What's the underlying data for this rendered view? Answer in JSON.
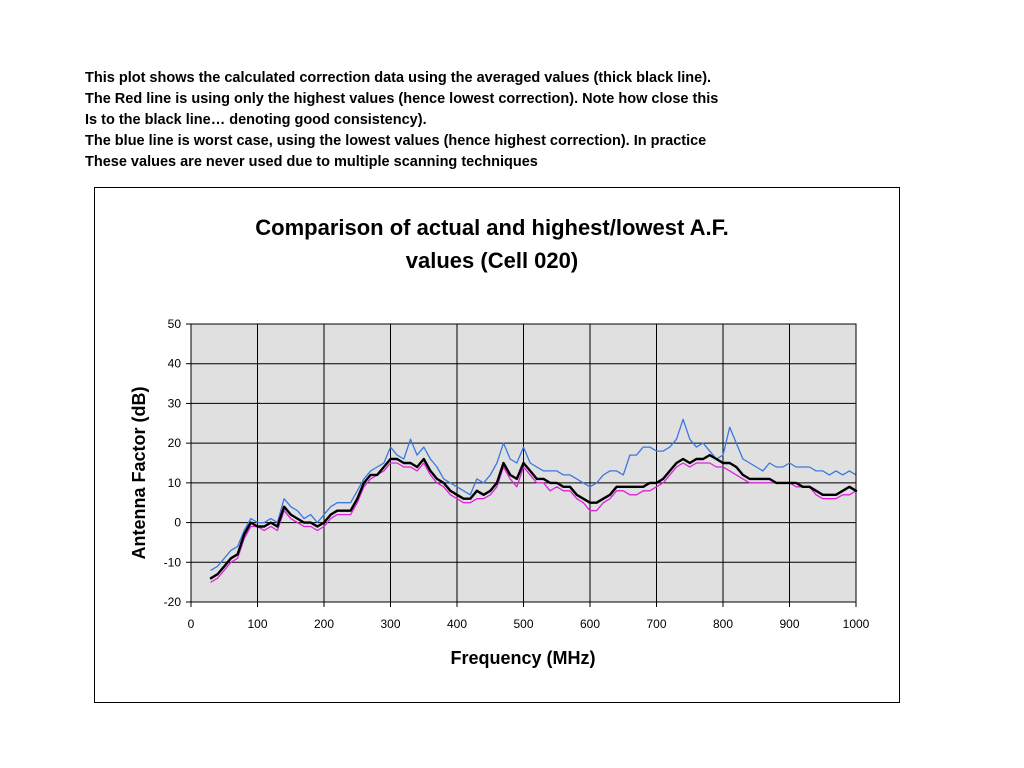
{
  "caption": {
    "lines": [
      "This plot shows the calculated correction data using the averaged values (thick black line).",
      "The Red line is using only the highest values (hence lowest correction). Note how close this",
      "Is to the black line… denoting good consistency).",
      "The blue line is worst case, using the lowest values (hence highest correction). In practice",
      "These values are never used due to multiple scanning techniques"
    ]
  },
  "chart_data": {
    "type": "line",
    "title_lines": [
      "Comparison of actual and highest/lowest A.F.",
      "values (Cell 020)"
    ],
    "xlabel": "Frequency (MHz)",
    "ylabel": "Antenna Factor (dB)",
    "xlim": [
      0,
      1000
    ],
    "ylim": [
      -20,
      50
    ],
    "xticks": [
      0,
      100,
      200,
      300,
      400,
      500,
      600,
      700,
      800,
      900,
      1000
    ],
    "yticks": [
      -20,
      -10,
      0,
      10,
      20,
      30,
      40,
      50
    ],
    "grid": true,
    "legend": "none",
    "colors": {
      "plot_bg": "#e0e0e0",
      "grid": "#000000"
    },
    "series": [
      {
        "color": "#3a78e0",
        "width": 1.3,
        "points": [
          [
            30,
            -12
          ],
          [
            40,
            -11
          ],
          [
            50,
            -9
          ],
          [
            60,
            -7
          ],
          [
            70,
            -6
          ],
          [
            80,
            -2
          ],
          [
            90,
            1
          ],
          [
            100,
            0
          ],
          [
            110,
            0
          ],
          [
            120,
            1
          ],
          [
            130,
            0
          ],
          [
            140,
            6
          ],
          [
            150,
            4
          ],
          [
            160,
            3
          ],
          [
            170,
            1
          ],
          [
            180,
            2
          ],
          [
            190,
            0
          ],
          [
            200,
            2
          ],
          [
            210,
            4
          ],
          [
            220,
            5
          ],
          [
            230,
            5
          ],
          [
            240,
            5
          ],
          [
            250,
            8
          ],
          [
            260,
            11
          ],
          [
            270,
            13
          ],
          [
            280,
            14
          ],
          [
            290,
            15
          ],
          [
            300,
            19
          ],
          [
            310,
            17
          ],
          [
            320,
            16
          ],
          [
            330,
            21
          ],
          [
            340,
            17
          ],
          [
            350,
            19
          ],
          [
            360,
            16
          ],
          [
            370,
            14
          ],
          [
            380,
            11
          ],
          [
            390,
            10
          ],
          [
            400,
            9
          ],
          [
            410,
            8
          ],
          [
            420,
            7
          ],
          [
            430,
            11
          ],
          [
            440,
            10
          ],
          [
            450,
            12
          ],
          [
            460,
            15
          ],
          [
            470,
            20
          ],
          [
            480,
            16
          ],
          [
            490,
            15
          ],
          [
            500,
            19
          ],
          [
            510,
            15
          ],
          [
            520,
            14
          ],
          [
            530,
            13
          ],
          [
            540,
            13
          ],
          [
            550,
            13
          ],
          [
            560,
            12
          ],
          [
            570,
            12
          ],
          [
            580,
            11
          ],
          [
            590,
            10
          ],
          [
            600,
            9
          ],
          [
            610,
            10
          ],
          [
            620,
            12
          ],
          [
            630,
            13
          ],
          [
            640,
            13
          ],
          [
            650,
            12
          ],
          [
            660,
            17
          ],
          [
            670,
            17
          ],
          [
            680,
            19
          ],
          [
            690,
            19
          ],
          [
            700,
            18
          ],
          [
            710,
            18
          ],
          [
            720,
            19
          ],
          [
            730,
            21
          ],
          [
            740,
            26
          ],
          [
            750,
            21
          ],
          [
            760,
            19
          ],
          [
            770,
            20
          ],
          [
            780,
            18
          ],
          [
            790,
            16
          ],
          [
            800,
            17
          ],
          [
            810,
            24
          ],
          [
            820,
            20
          ],
          [
            830,
            16
          ],
          [
            840,
            15
          ],
          [
            850,
            14
          ],
          [
            860,
            13
          ],
          [
            870,
            15
          ],
          [
            880,
            14
          ],
          [
            890,
            14
          ],
          [
            900,
            15
          ],
          [
            910,
            14
          ],
          [
            920,
            14
          ],
          [
            930,
            14
          ],
          [
            940,
            13
          ],
          [
            950,
            13
          ],
          [
            960,
            12
          ],
          [
            970,
            13
          ],
          [
            980,
            12
          ],
          [
            990,
            13
          ],
          [
            1000,
            12
          ]
        ]
      },
      {
        "color": "#e020e0",
        "width": 1.3,
        "points": [
          [
            30,
            -15
          ],
          [
            40,
            -14
          ],
          [
            50,
            -12
          ],
          [
            60,
            -10
          ],
          [
            70,
            -9
          ],
          [
            80,
            -4
          ],
          [
            90,
            -1
          ],
          [
            100,
            -1
          ],
          [
            110,
            -2
          ],
          [
            120,
            -1
          ],
          [
            130,
            -2
          ],
          [
            140,
            3
          ],
          [
            150,
            1
          ],
          [
            160,
            0
          ],
          [
            170,
            -1
          ],
          [
            180,
            -1
          ],
          [
            190,
            -2
          ],
          [
            200,
            -1
          ],
          [
            210,
            1
          ],
          [
            220,
            2
          ],
          [
            230,
            2
          ],
          [
            240,
            2
          ],
          [
            250,
            5
          ],
          [
            260,
            9
          ],
          [
            270,
            11
          ],
          [
            280,
            12
          ],
          [
            290,
            13
          ],
          [
            300,
            15
          ],
          [
            310,
            15
          ],
          [
            320,
            14
          ],
          [
            330,
            14
          ],
          [
            340,
            13
          ],
          [
            350,
            15
          ],
          [
            360,
            12
          ],
          [
            370,
            10
          ],
          [
            380,
            9
          ],
          [
            390,
            7
          ],
          [
            400,
            6
          ],
          [
            410,
            5
          ],
          [
            420,
            5
          ],
          [
            430,
            6
          ],
          [
            440,
            6
          ],
          [
            450,
            7
          ],
          [
            460,
            9
          ],
          [
            470,
            14
          ],
          [
            480,
            11
          ],
          [
            490,
            9
          ],
          [
            500,
            14
          ],
          [
            510,
            12
          ],
          [
            520,
            10
          ],
          [
            530,
            10
          ],
          [
            540,
            8
          ],
          [
            550,
            9
          ],
          [
            560,
            8
          ],
          [
            570,
            8
          ],
          [
            580,
            6
          ],
          [
            590,
            5
          ],
          [
            600,
            3
          ],
          [
            610,
            3
          ],
          [
            620,
            5
          ],
          [
            630,
            6
          ],
          [
            640,
            8
          ],
          [
            650,
            8
          ],
          [
            660,
            7
          ],
          [
            670,
            7
          ],
          [
            680,
            8
          ],
          [
            690,
            8
          ],
          [
            700,
            9
          ],
          [
            710,
            10
          ],
          [
            720,
            12
          ],
          [
            730,
            14
          ],
          [
            740,
            15
          ],
          [
            750,
            14
          ],
          [
            760,
            15
          ],
          [
            770,
            15
          ],
          [
            780,
            15
          ],
          [
            790,
            14
          ],
          [
            800,
            14
          ],
          [
            810,
            13
          ],
          [
            820,
            12
          ],
          [
            830,
            11
          ],
          [
            840,
            10
          ],
          [
            850,
            10
          ],
          [
            860,
            10
          ],
          [
            870,
            10
          ],
          [
            880,
            10
          ],
          [
            890,
            10
          ],
          [
            900,
            10
          ],
          [
            910,
            9
          ],
          [
            920,
            9
          ],
          [
            930,
            9
          ],
          [
            940,
            7
          ],
          [
            950,
            6
          ],
          [
            960,
            6
          ],
          [
            970,
            6
          ],
          [
            980,
            7
          ],
          [
            990,
            7
          ],
          [
            1000,
            8
          ]
        ]
      },
      {
        "color": "#000000",
        "width": 2.4,
        "points": [
          [
            30,
            -14
          ],
          [
            40,
            -13
          ],
          [
            50,
            -11
          ],
          [
            60,
            -9
          ],
          [
            70,
            -8
          ],
          [
            80,
            -3
          ],
          [
            90,
            0
          ],
          [
            100,
            -1
          ],
          [
            110,
            -1
          ],
          [
            120,
            0
          ],
          [
            130,
            -1
          ],
          [
            140,
            4
          ],
          [
            150,
            2
          ],
          [
            160,
            1
          ],
          [
            170,
            0
          ],
          [
            180,
            0
          ],
          [
            190,
            -1
          ],
          [
            200,
            0
          ],
          [
            210,
            2
          ],
          [
            220,
            3
          ],
          [
            230,
            3
          ],
          [
            240,
            3
          ],
          [
            250,
            6
          ],
          [
            260,
            10
          ],
          [
            270,
            12
          ],
          [
            280,
            12
          ],
          [
            290,
            14
          ],
          [
            300,
            16
          ],
          [
            310,
            16
          ],
          [
            320,
            15
          ],
          [
            330,
            15
          ],
          [
            340,
            14
          ],
          [
            350,
            16
          ],
          [
            360,
            13
          ],
          [
            370,
            11
          ],
          [
            380,
            10
          ],
          [
            390,
            8
          ],
          [
            400,
            7
          ],
          [
            410,
            6
          ],
          [
            420,
            6
          ],
          [
            430,
            8
          ],
          [
            440,
            7
          ],
          [
            450,
            8
          ],
          [
            460,
            10
          ],
          [
            470,
            15
          ],
          [
            480,
            12
          ],
          [
            490,
            11
          ],
          [
            500,
            15
          ],
          [
            510,
            13
          ],
          [
            520,
            11
          ],
          [
            530,
            11
          ],
          [
            540,
            10
          ],
          [
            550,
            10
          ],
          [
            560,
            9
          ],
          [
            570,
            9
          ],
          [
            580,
            7
          ],
          [
            590,
            6
          ],
          [
            600,
            5
          ],
          [
            610,
            5
          ],
          [
            620,
            6
          ],
          [
            630,
            7
          ],
          [
            640,
            9
          ],
          [
            650,
            9
          ],
          [
            660,
            9
          ],
          [
            670,
            9
          ],
          [
            680,
            9
          ],
          [
            690,
            10
          ],
          [
            700,
            10
          ],
          [
            710,
            11
          ],
          [
            720,
            13
          ],
          [
            730,
            15
          ],
          [
            740,
            16
          ],
          [
            750,
            15
          ],
          [
            760,
            16
          ],
          [
            770,
            16
          ],
          [
            780,
            17
          ],
          [
            790,
            16
          ],
          [
            800,
            15
          ],
          [
            810,
            15
          ],
          [
            820,
            14
          ],
          [
            830,
            12
          ],
          [
            840,
            11
          ],
          [
            850,
            11
          ],
          [
            860,
            11
          ],
          [
            870,
            11
          ],
          [
            880,
            10
          ],
          [
            890,
            10
          ],
          [
            900,
            10
          ],
          [
            910,
            10
          ],
          [
            920,
            9
          ],
          [
            930,
            9
          ],
          [
            940,
            8
          ],
          [
            950,
            7
          ],
          [
            960,
            7
          ],
          [
            970,
            7
          ],
          [
            980,
            8
          ],
          [
            990,
            9
          ],
          [
            1000,
            8
          ]
        ]
      }
    ]
  }
}
